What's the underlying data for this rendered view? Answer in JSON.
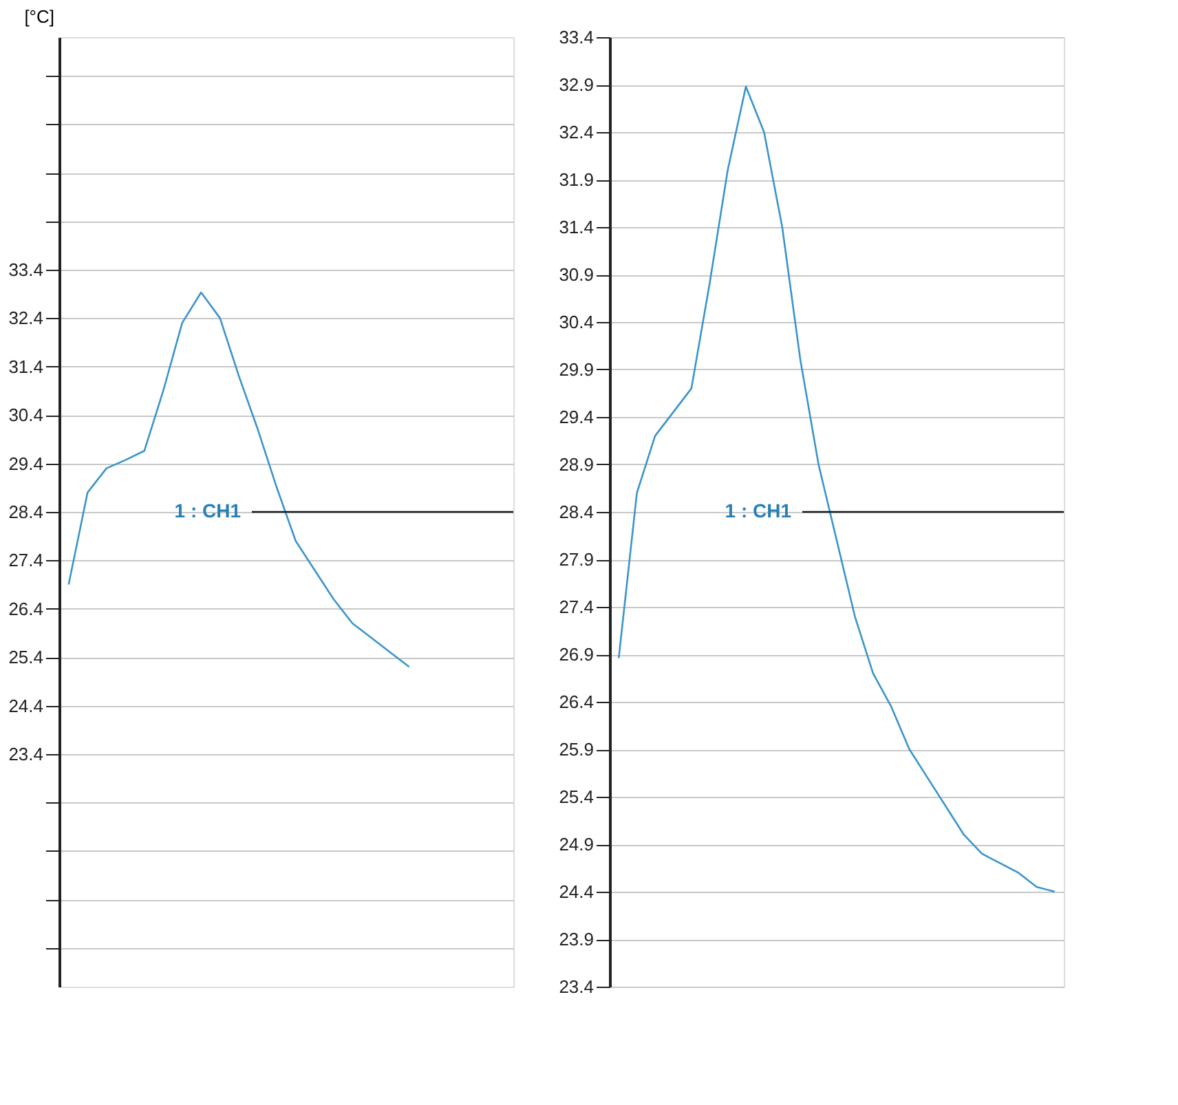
{
  "chart_data": [
    {
      "type": "line",
      "ylabel": "[°C]",
      "categories": [
        null,
        null,
        null,
        null,
        null,
        null,
        null,
        null,
        null,
        null,
        null,
        null,
        null,
        null,
        null,
        null,
        null,
        null,
        null,
        null,
        null,
        null,
        null,
        null
      ],
      "series": [
        {
          "color": "#3a94cc",
          "values": [
            26.9,
            28.8,
            29.3,
            29.47,
            29.66,
            30.9,
            32.3,
            32.93,
            32.4,
            31.2,
            30.1,
            28.9,
            27.8,
            27.2,
            26.6,
            26.1,
            25.8,
            25.5,
            25.2,
            null,
            null,
            null,
            null,
            null
          ]
        }
      ],
      "ylim": [
        18.6,
        38.2
      ],
      "yticks": [
        {
          "value": 19.4,
          "label": null
        },
        {
          "value": 20.4,
          "label": null
        },
        {
          "value": 21.4,
          "label": null
        },
        {
          "value": 22.4,
          "label": null
        },
        23.4,
        24.4,
        25.4,
        26.4,
        27.4,
        28.4,
        29.4,
        30.4,
        31.4,
        32.4,
        33.4,
        {
          "value": 34.4,
          "label": null
        },
        {
          "value": 35.4,
          "label": null
        },
        {
          "value": 36.4,
          "label": null
        },
        {
          "value": 37.4,
          "label": null
        }
      ],
      "ref_lines": [
        {
          "axis": "y",
          "value": 28.4,
          "label": "1 : CH1",
          "color": "#1a1a1a"
        }
      ],
      "grid": "y",
      "marker": "none",
      "line_style": "solid",
      "legend": false,
      "tick_labels": "y"
    },
    {
      "type": "line",
      "categories": [
        null,
        null,
        null,
        null,
        null,
        null,
        null,
        null,
        null,
        null,
        null,
        null,
        null,
        null,
        null,
        null,
        null,
        null,
        null,
        null,
        null,
        null,
        null,
        null,
        null
      ],
      "series": [
        {
          "color": "#3a94cc",
          "values": [
            26.86,
            28.6,
            29.2,
            29.45,
            29.7,
            30.8,
            32.0,
            32.88,
            32.4,
            31.4,
            30.0,
            28.9,
            28.1,
            27.3,
            26.7,
            26.35,
            25.9,
            25.6,
            25.3,
            25.0,
            24.8,
            24.7,
            24.6,
            24.45,
            24.4
          ]
        }
      ],
      "ylim": [
        23.4,
        33.4
      ],
      "yticks": [
        23.4,
        23.9,
        24.4,
        24.9,
        25.4,
        25.9,
        26.4,
        26.9,
        27.4,
        27.9,
        28.4,
        28.9,
        29.4,
        29.9,
        30.4,
        30.9,
        31.4,
        31.9,
        32.4,
        32.9,
        33.4
      ],
      "ref_lines": [
        {
          "axis": "y",
          "value": 28.4,
          "label": "1 : CH1",
          "color": "#1a1a1a"
        }
      ],
      "grid": "y",
      "marker": "none",
      "line_style": "solid",
      "legend": false,
      "tick_labels": "y"
    }
  ]
}
